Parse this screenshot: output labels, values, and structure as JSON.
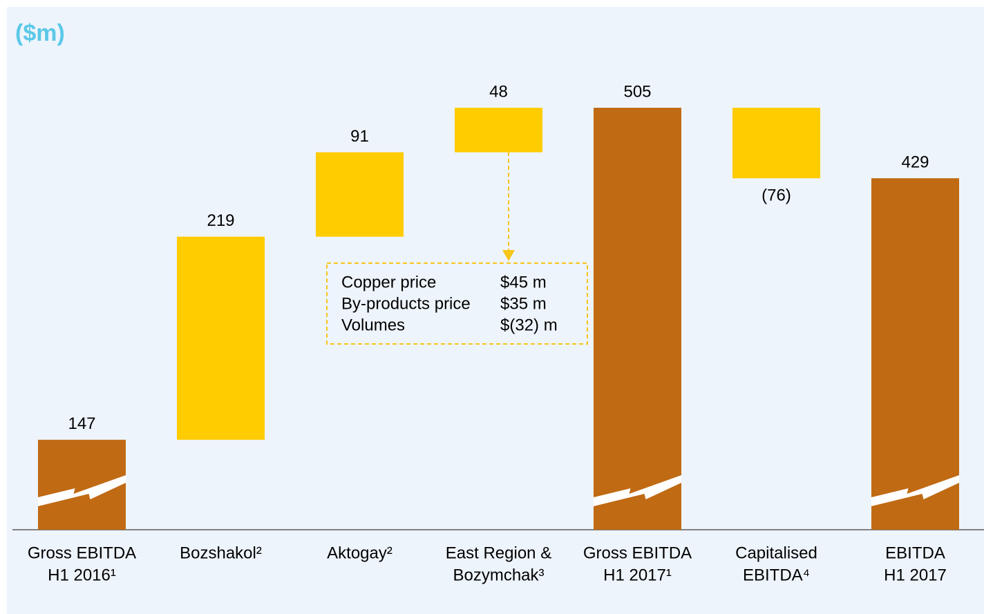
{
  "chart_data": {
    "type": "waterfall",
    "title": "($m)",
    "categories": [
      [
        "Gross EBITDA",
        "H1 2016¹"
      ],
      [
        "Bozshakol²"
      ],
      [
        "Aktogay²"
      ],
      [
        "East Region &",
        "Bozymchak³"
      ],
      [
        "Gross EBITDA",
        "H1 2017¹"
      ],
      [
        "Capitalised",
        "EBITDA⁴"
      ],
      [
        "EBITDA",
        "H1 2017"
      ]
    ],
    "values": [
      147,
      219,
      91,
      48,
      505,
      -76,
      429
    ],
    "value_labels": [
      "147",
      "219",
      "91",
      "48",
      "505",
      "(76)",
      "429"
    ],
    "is_total": [
      true,
      false,
      false,
      false,
      true,
      false,
      true
    ],
    "color": "#ffcc00",
    "total_color": "#c06a14",
    "ylim": [
      50,
      550
    ],
    "annotation": {
      "rows": [
        [
          "Copper price",
          "$45 m"
        ],
        [
          "By-products price",
          "$35 m"
        ],
        [
          "Volumes",
          "$(32) m"
        ]
      ]
    }
  }
}
